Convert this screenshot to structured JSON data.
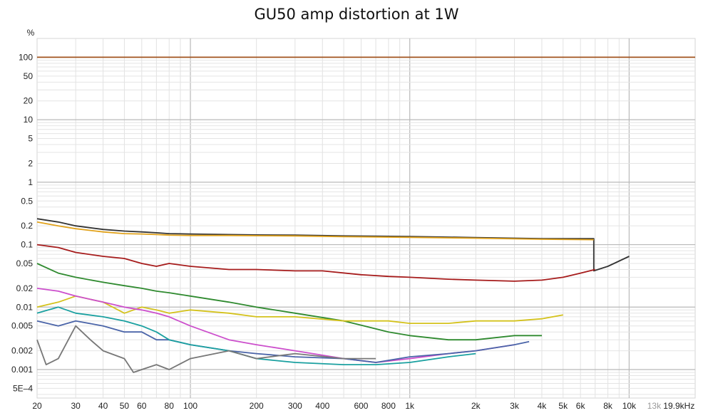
{
  "chart_data": {
    "type": "line",
    "title": "GU50 amp distortion at 1W",
    "ylabel": "%",
    "xscale": "log",
    "yscale": "log",
    "xlim": [
      20,
      20000
    ],
    "ylim": [
      0.00035,
      200
    ],
    "grid": true,
    "legend": "none",
    "y_ticks": [
      {
        "value": 100,
        "label": "100"
      },
      {
        "value": 50,
        "label": "50"
      },
      {
        "value": 20,
        "label": "20"
      },
      {
        "value": 10,
        "label": "10"
      },
      {
        "value": 5,
        "label": "5"
      },
      {
        "value": 2,
        "label": "2"
      },
      {
        "value": 1,
        "label": "1"
      },
      {
        "value": 0.5,
        "label": "0.5"
      },
      {
        "value": 0.2,
        "label": "0.2"
      },
      {
        "value": 0.1,
        "label": "0.1"
      },
      {
        "value": 0.05,
        "label": "0.05"
      },
      {
        "value": 0.02,
        "label": "0.02"
      },
      {
        "value": 0.01,
        "label": "0.01"
      },
      {
        "value": 0.005,
        "label": "0.005"
      },
      {
        "value": 0.002,
        "label": "0.002"
      },
      {
        "value": 0.001,
        "label": "0.001"
      },
      {
        "value": 0.0005,
        "label": "5E–4"
      }
    ],
    "x_ticks": [
      {
        "value": 20,
        "label": "20"
      },
      {
        "value": 30,
        "label": "30"
      },
      {
        "value": 40,
        "label": "40"
      },
      {
        "value": 50,
        "label": "50"
      },
      {
        "value": 60,
        "label": "60"
      },
      {
        "value": 80,
        "label": "80"
      },
      {
        "value": 100,
        "label": "100"
      },
      {
        "value": 200,
        "label": "200"
      },
      {
        "value": 300,
        "label": "300"
      },
      {
        "value": 400,
        "label": "400"
      },
      {
        "value": 600,
        "label": "600"
      },
      {
        "value": 800,
        "label": "800"
      },
      {
        "value": 1000,
        "label": "1k"
      },
      {
        "value": 2000,
        "label": "2k"
      },
      {
        "value": 3000,
        "label": "3k"
      },
      {
        "value": 4000,
        "label": "4k"
      },
      {
        "value": 5000,
        "label": "5k"
      },
      {
        "value": 6000,
        "label": "6k"
      },
      {
        "value": 8000,
        "label": "8k"
      },
      {
        "value": 10000,
        "label": "10k"
      },
      {
        "value": 13000,
        "label": "13k",
        "muted": true
      },
      {
        "value": 19900,
        "label": "19.9kHz"
      }
    ],
    "series": [
      {
        "color": "#a0521d",
        "x": [
          20,
          20000
        ],
        "y": [
          100,
          100
        ]
      },
      {
        "color": "#333333",
        "x": [
          20,
          25,
          30,
          40,
          50,
          60,
          70,
          80,
          100,
          150,
          200,
          300,
          500,
          1000,
          2000,
          4000,
          6900,
          6900,
          8000,
          10000
        ],
        "y": [
          0.26,
          0.23,
          0.2,
          0.175,
          0.165,
          0.16,
          0.155,
          0.15,
          0.148,
          0.145,
          0.143,
          0.142,
          0.138,
          0.135,
          0.13,
          0.125,
          0.125,
          0.038,
          0.045,
          0.065
        ]
      },
      {
        "color": "#e1a21b",
        "x": [
          20,
          25,
          30,
          40,
          50,
          60,
          70,
          80,
          100,
          150,
          200,
          300,
          500,
          1000,
          2000,
          4000,
          6900
        ],
        "y": [
          0.23,
          0.2,
          0.18,
          0.16,
          0.15,
          0.148,
          0.145,
          0.142,
          0.14,
          0.14,
          0.139,
          0.138,
          0.134,
          0.131,
          0.127,
          0.122,
          0.12
        ]
      },
      {
        "color": "#a61b1b",
        "x": [
          20,
          25,
          30,
          40,
          50,
          60,
          70,
          80,
          100,
          150,
          200,
          300,
          400,
          600,
          800,
          1000,
          1500,
          2000,
          3000,
          4000,
          5000,
          6000,
          7000
        ],
        "y": [
          0.1,
          0.09,
          0.075,
          0.065,
          0.06,
          0.05,
          0.045,
          0.05,
          0.045,
          0.04,
          0.04,
          0.038,
          0.038,
          0.033,
          0.031,
          0.03,
          0.028,
          0.027,
          0.026,
          0.027,
          0.03,
          0.035,
          0.04
        ]
      },
      {
        "color": "#2f8a2f",
        "x": [
          20,
          25,
          30,
          40,
          50,
          60,
          70,
          80,
          100,
          150,
          200,
          300,
          500,
          800,
          1000,
          1500,
          2000,
          3000,
          4000
        ],
        "y": [
          0.05,
          0.035,
          0.03,
          0.025,
          0.022,
          0.02,
          0.018,
          0.017,
          0.015,
          0.012,
          0.01,
          0.008,
          0.006,
          0.004,
          0.0035,
          0.003,
          0.003,
          0.0035,
          0.0035
        ]
      },
      {
        "color": "#d4c21c",
        "x": [
          20,
          25,
          30,
          40,
          50,
          60,
          70,
          80,
          100,
          150,
          200,
          300,
          500,
          800,
          1000,
          1500,
          2000,
          3000,
          4000,
          5000
        ],
        "y": [
          0.01,
          0.012,
          0.015,
          0.012,
          0.008,
          0.01,
          0.009,
          0.008,
          0.009,
          0.008,
          0.007,
          0.007,
          0.006,
          0.006,
          0.0055,
          0.0055,
          0.006,
          0.006,
          0.0065,
          0.0075
        ]
      },
      {
        "color": "#cc4fcc",
        "x": [
          20,
          25,
          30,
          40,
          50,
          60,
          70,
          80,
          100,
          150,
          200,
          300,
          500,
          700,
          1000,
          1500,
          2000,
          3000
        ],
        "y": [
          0.02,
          0.018,
          0.015,
          0.012,
          0.01,
          0.009,
          0.008,
          0.007,
          0.005,
          0.003,
          0.0025,
          0.002,
          0.0015,
          0.0013,
          0.0015,
          0.0018,
          0.002,
          0.0025
        ]
      },
      {
        "color": "#4a64a8",
        "x": [
          20,
          25,
          30,
          40,
          50,
          60,
          70,
          80,
          100,
          150,
          200,
          300,
          500,
          700,
          1000,
          1500,
          2000,
          3000,
          3500
        ],
        "y": [
          0.006,
          0.005,
          0.006,
          0.005,
          0.004,
          0.004,
          0.003,
          0.003,
          0.0025,
          0.002,
          0.0018,
          0.0016,
          0.0015,
          0.0013,
          0.0016,
          0.0018,
          0.002,
          0.0025,
          0.0028
        ]
      },
      {
        "color": "#1aa0a0",
        "x": [
          20,
          25,
          30,
          40,
          50,
          60,
          70,
          80,
          100,
          150,
          200,
          300,
          500,
          700,
          1000,
          1500,
          2000
        ],
        "y": [
          0.008,
          0.01,
          0.008,
          0.007,
          0.006,
          0.005,
          0.004,
          0.003,
          0.0025,
          0.002,
          0.0015,
          0.0013,
          0.0012,
          0.0012,
          0.0013,
          0.0016,
          0.0018
        ]
      },
      {
        "color": "#777777",
        "x": [
          20,
          22,
          25,
          30,
          35,
          40,
          50,
          55,
          60,
          70,
          80,
          100,
          150,
          200,
          300,
          500,
          700
        ],
        "y": [
          0.003,
          0.0012,
          0.0015,
          0.005,
          0.003,
          0.002,
          0.0015,
          0.0009,
          0.001,
          0.0012,
          0.001,
          0.0015,
          0.002,
          0.0015,
          0.0018,
          0.0015,
          0.0015
        ]
      }
    ]
  }
}
